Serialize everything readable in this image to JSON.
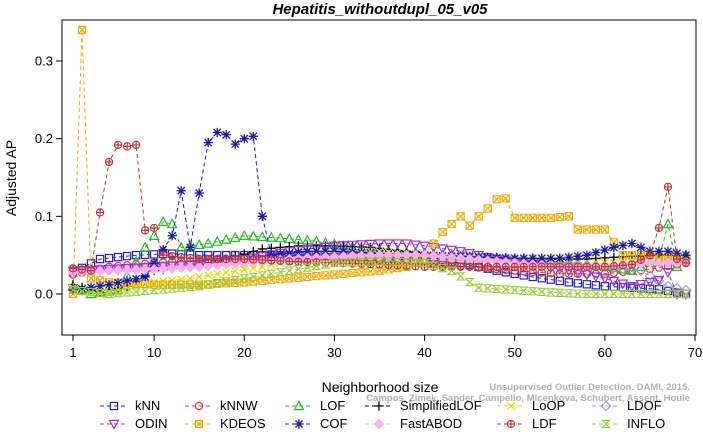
{
  "chart_data": {
    "type": "line",
    "title": "Hepatitis_withoutdupl_05_v05",
    "xlabel": "Neighborhood size",
    "ylabel": "Adjusted AP",
    "xlim": [
      0,
      70
    ],
    "ylim": [
      -0.055,
      0.35
    ],
    "xticks": [
      1,
      10,
      20,
      30,
      40,
      50,
      60,
      70
    ],
    "yticks": [
      0.0,
      0.1,
      0.2,
      0.3
    ],
    "ytick_labels": [
      "0.0",
      "0.1",
      "0.2",
      "0.3"
    ],
    "grid": false,
    "legend_position": "bottom",
    "series": [
      {
        "name": "kNN",
        "color": "#2222cc",
        "marker": "square",
        "marker_every": 1,
        "points": [
          [
            1,
            0.028
          ],
          [
            4,
            0.045
          ],
          [
            8,
            0.05
          ],
          [
            12,
            0.052
          ],
          [
            15,
            0.05
          ],
          [
            20,
            0.05
          ],
          [
            25,
            0.05
          ],
          [
            30,
            0.05
          ],
          [
            35,
            0.046
          ],
          [
            40,
            0.043
          ],
          [
            44,
            0.04
          ],
          [
            48,
            0.03
          ],
          [
            52,
            0.022
          ],
          [
            56,
            0.015
          ],
          [
            60,
            0.01
          ],
          [
            63,
            0.008
          ],
          [
            66,
            0.006
          ],
          [
            69,
            0.0
          ]
        ]
      },
      {
        "name": "kNNW",
        "color": "#dd3333",
        "marker": "circle",
        "marker_every": 1,
        "points": [
          [
            1,
            0.025
          ],
          [
            5,
            0.035
          ],
          [
            10,
            0.04
          ],
          [
            15,
            0.043
          ],
          [
            20,
            0.045
          ],
          [
            25,
            0.045
          ],
          [
            30,
            0.044
          ],
          [
            35,
            0.043
          ],
          [
            40,
            0.04
          ],
          [
            45,
            0.035
          ],
          [
            50,
            0.03
          ],
          [
            55,
            0.026
          ],
          [
            60,
            0.026
          ],
          [
            65,
            0.032
          ],
          [
            69,
            0.04
          ]
        ]
      },
      {
        "name": "LOF",
        "color": "#22bb22",
        "marker": "triangle-up",
        "marker_every": 1,
        "points": [
          [
            1,
            0.01
          ],
          [
            3,
            0.0
          ],
          [
            6,
            0.005
          ],
          [
            9,
            0.06
          ],
          [
            10,
            0.075
          ],
          [
            11,
            0.093
          ],
          [
            12,
            0.09
          ],
          [
            13,
            0.06
          ],
          [
            16,
            0.065
          ],
          [
            20,
            0.075
          ],
          [
            24,
            0.072
          ],
          [
            28,
            0.068
          ],
          [
            32,
            0.06
          ],
          [
            36,
            0.055
          ],
          [
            40,
            0.052
          ],
          [
            44,
            0.048
          ],
          [
            48,
            0.046
          ],
          [
            52,
            0.045
          ],
          [
            56,
            0.04
          ],
          [
            60,
            0.035
          ],
          [
            63,
            0.03
          ],
          [
            66,
            0.045
          ],
          [
            67,
            0.09
          ],
          [
            68,
            0.035
          ],
          [
            69,
            0.05
          ]
        ]
      },
      {
        "name": "SimplifiedLOF",
        "color": "#000000",
        "marker": "plus",
        "marker_every": 1,
        "points": [
          [
            1,
            0.012
          ],
          [
            4,
            0.002
          ],
          [
            7,
            0.01
          ],
          [
            10,
            0.03
          ],
          [
            14,
            0.035
          ],
          [
            18,
            0.045
          ],
          [
            22,
            0.058
          ],
          [
            26,
            0.062
          ],
          [
            30,
            0.062
          ],
          [
            34,
            0.06
          ],
          [
            38,
            0.055
          ],
          [
            42,
            0.05
          ],
          [
            46,
            0.048
          ],
          [
            50,
            0.046
          ],
          [
            54,
            0.045
          ],
          [
            58,
            0.045
          ],
          [
            62,
            0.048
          ],
          [
            66,
            0.05
          ],
          [
            69,
            0.05
          ]
        ]
      },
      {
        "name": "LoOP",
        "color": "#dddd00",
        "marker": "x",
        "marker_every": 1,
        "points": [
          [
            1,
            0.008
          ],
          [
            4,
            0.0
          ],
          [
            7,
            0.008
          ],
          [
            10,
            0.015
          ],
          [
            14,
            0.02
          ],
          [
            18,
            0.028
          ],
          [
            22,
            0.035
          ],
          [
            26,
            0.045
          ],
          [
            30,
            0.055
          ],
          [
            34,
            0.055
          ],
          [
            38,
            0.052
          ],
          [
            42,
            0.048
          ],
          [
            46,
            0.045
          ],
          [
            50,
            0.044
          ],
          [
            54,
            0.042
          ],
          [
            58,
            0.04
          ],
          [
            62,
            0.04
          ],
          [
            66,
            0.045
          ],
          [
            69,
            0.045
          ]
        ]
      },
      {
        "name": "LDOF",
        "color": "#9999dd",
        "marker": "diamond",
        "marker_every": 1,
        "points": [
          [
            1,
            0.03
          ],
          [
            5,
            0.032
          ],
          [
            10,
            0.035
          ],
          [
            15,
            0.04
          ],
          [
            20,
            0.042
          ],
          [
            25,
            0.045
          ],
          [
            30,
            0.048
          ],
          [
            35,
            0.05
          ],
          [
            40,
            0.05
          ],
          [
            45,
            0.048
          ],
          [
            50,
            0.045
          ],
          [
            55,
            0.04
          ],
          [
            60,
            0.035
          ],
          [
            64,
            0.03
          ],
          [
            67,
            0.01
          ],
          [
            69,
            0.005
          ]
        ]
      },
      {
        "name": "ODIN",
        "color": "#9933cc",
        "marker": "triangle-down",
        "marker_every": 1,
        "points": [
          [
            1,
            0.03
          ],
          [
            5,
            0.032
          ],
          [
            10,
            0.035
          ],
          [
            15,
            0.038
          ],
          [
            20,
            0.045
          ],
          [
            25,
            0.055
          ],
          [
            30,
            0.062
          ],
          [
            35,
            0.065
          ],
          [
            38,
            0.065
          ],
          [
            40,
            0.062
          ],
          [
            44,
            0.055
          ],
          [
            48,
            0.045
          ],
          [
            52,
            0.038
          ],
          [
            56,
            0.03
          ],
          [
            60,
            0.02
          ],
          [
            63,
            0.01
          ],
          [
            66,
            0.018
          ],
          [
            67,
            0.028
          ],
          [
            68,
            0.0
          ],
          [
            69,
            0.0
          ]
        ]
      },
      {
        "name": "KDEOS",
        "color": "#f0a800",
        "marker": "boxed-x",
        "marker_every": 1,
        "points": [
          [
            1,
            0.0
          ],
          [
            2,
            0.34
          ],
          [
            3,
            0.02
          ],
          [
            5,
            0.015
          ],
          [
            10,
            0.012
          ],
          [
            15,
            0.012
          ],
          [
            20,
            0.015
          ],
          [
            25,
            0.02
          ],
          [
            30,
            0.025
          ],
          [
            35,
            0.03
          ],
          [
            38,
            0.035
          ],
          [
            40,
            0.045
          ],
          [
            41,
            0.065
          ],
          [
            42,
            0.08
          ],
          [
            43,
            0.09
          ],
          [
            44,
            0.1
          ],
          [
            45,
            0.088
          ],
          [
            46,
            0.1
          ],
          [
            47,
            0.11
          ],
          [
            48,
            0.122
          ],
          [
            49,
            0.123
          ],
          [
            50,
            0.098
          ],
          [
            52,
            0.098
          ],
          [
            54,
            0.098
          ],
          [
            56,
            0.1
          ],
          [
            57,
            0.083
          ],
          [
            59,
            0.083
          ],
          [
            60,
            0.083
          ],
          [
            62,
            0.05
          ],
          [
            66,
            0.05
          ],
          [
            69,
            0.045
          ]
        ]
      },
      {
        "name": "COF",
        "color": "#1a1aaa",
        "marker": "asterisk",
        "marker_every": 1,
        "points": [
          [
            1,
            0.005
          ],
          [
            5,
            0.012
          ],
          [
            9,
            0.022
          ],
          [
            12,
            0.075
          ],
          [
            13,
            0.133
          ],
          [
            14,
            0.06
          ],
          [
            15,
            0.13
          ],
          [
            16,
            0.195
          ],
          [
            17,
            0.208
          ],
          [
            18,
            0.205
          ],
          [
            19,
            0.193
          ],
          [
            20,
            0.2
          ],
          [
            21,
            0.203
          ],
          [
            22,
            0.1
          ],
          [
            23,
            0.05
          ],
          [
            27,
            0.055
          ],
          [
            31,
            0.055
          ],
          [
            35,
            0.052
          ],
          [
            40,
            0.05
          ],
          [
            45,
            0.048
          ],
          [
            50,
            0.046
          ],
          [
            55,
            0.046
          ],
          [
            58,
            0.05
          ],
          [
            61,
            0.06
          ],
          [
            63,
            0.065
          ],
          [
            65,
            0.055
          ],
          [
            67,
            0.055
          ],
          [
            69,
            0.05
          ]
        ]
      },
      {
        "name": "FastABOD",
        "color": "#ffaaee",
        "marker": "diamond-filled",
        "marker_every": 1,
        "points": [
          [
            1,
            0.028
          ],
          [
            5,
            0.03
          ],
          [
            10,
            0.032
          ],
          [
            15,
            0.035
          ],
          [
            20,
            0.04
          ],
          [
            25,
            0.045
          ],
          [
            30,
            0.048
          ],
          [
            35,
            0.05
          ],
          [
            40,
            0.05
          ],
          [
            45,
            0.045
          ],
          [
            50,
            0.04
          ],
          [
            55,
            0.035
          ],
          [
            60,
            0.035
          ],
          [
            65,
            0.04
          ],
          [
            69,
            0.04
          ]
        ]
      },
      {
        "name": "LDF",
        "color": "#bb3333",
        "marker": "circle-plus",
        "marker_every": 1,
        "points": [
          [
            1,
            0.033
          ],
          [
            3,
            0.03
          ],
          [
            4,
            0.105
          ],
          [
            5,
            0.17
          ],
          [
            6,
            0.192
          ],
          [
            7,
            0.19
          ],
          [
            8,
            0.192
          ],
          [
            9,
            0.082
          ],
          [
            10,
            0.085
          ],
          [
            11,
            0.05
          ],
          [
            15,
            0.045
          ],
          [
            20,
            0.045
          ],
          [
            25,
            0.042
          ],
          [
            30,
            0.04
          ],
          [
            35,
            0.038
          ],
          [
            40,
            0.035
          ],
          [
            45,
            0.035
          ],
          [
            50,
            0.035
          ],
          [
            55,
            0.035
          ],
          [
            60,
            0.035
          ],
          [
            63,
            0.038
          ],
          [
            65,
            0.05
          ],
          [
            66,
            0.085
          ],
          [
            67,
            0.138
          ],
          [
            68,
            0.045
          ],
          [
            69,
            0.04
          ]
        ]
      },
      {
        "name": "INFLO",
        "color": "#99cc33",
        "marker": "hourglass",
        "marker_every": 1,
        "points": [
          [
            1,
            0.005
          ],
          [
            5,
            0.0
          ],
          [
            10,
            0.005
          ],
          [
            15,
            0.01
          ],
          [
            20,
            0.02
          ],
          [
            25,
            0.03
          ],
          [
            30,
            0.04
          ],
          [
            35,
            0.042
          ],
          [
            40,
            0.04
          ],
          [
            43,
            0.03
          ],
          [
            46,
            0.008
          ],
          [
            50,
            0.005
          ],
          [
            54,
            0.002
          ],
          [
            58,
            0.0
          ],
          [
            62,
            0.0
          ],
          [
            66,
            0.0
          ],
          [
            69,
            0.0
          ]
        ]
      }
    ],
    "watermark": [
      "Unsupervised Outlier Detection. DAMI, 2015.",
      "Campos, Zimek, Sander, Campello, Micenkova, Schubert, Assent, Houle"
    ]
  }
}
